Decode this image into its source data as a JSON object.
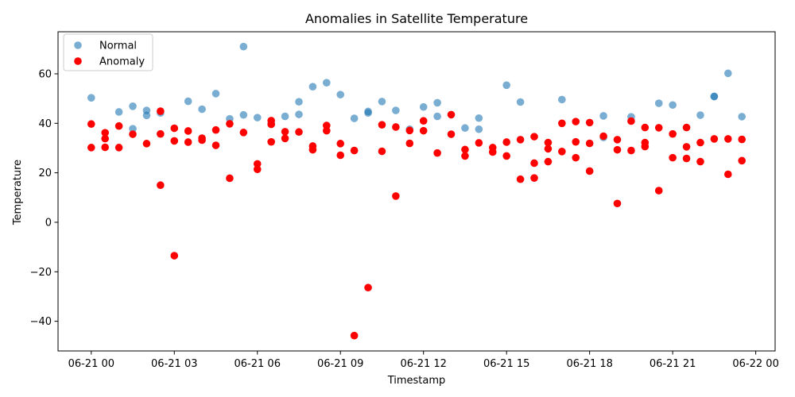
{
  "chart_data": {
    "type": "scatter",
    "title": "Anomalies in Satellite Temperature",
    "xlabel": "Timestamp",
    "ylabel": "Temperature",
    "x_unit": "hours from 06-21 00:00",
    "xlim": [
      -1.2,
      24.7
    ],
    "ylim": [
      -52,
      77
    ],
    "x_ticks": [
      0,
      3,
      6,
      9,
      12,
      15,
      18,
      21,
      24
    ],
    "x_tick_labels": [
      "06-21 00",
      "06-21 03",
      "06-21 06",
      "06-21 09",
      "06-21 12",
      "06-21 15",
      "06-21 18",
      "06-21 21",
      "06-22 00"
    ],
    "y_ticks": [
      -40,
      -20,
      0,
      20,
      40,
      60
    ],
    "y_tick_labels": [
      "−40",
      "−20",
      "0",
      "20",
      "40",
      "60"
    ],
    "grid": false,
    "legend_position": "top-left",
    "series": [
      {
        "name": "Normal",
        "color": "#1f77b4",
        "alpha": 0.6,
        "points": [
          [
            0,
            50.3
          ],
          [
            1,
            44.6
          ],
          [
            1.5,
            46.9
          ],
          [
            1.5,
            37.8
          ],
          [
            2,
            45.2
          ],
          [
            2,
            43.2
          ],
          [
            2.5,
            44.2
          ],
          [
            3.5,
            48.9
          ],
          [
            4,
            45.7
          ],
          [
            4.5,
            52.0
          ],
          [
            5,
            41.8
          ],
          [
            5.5,
            71.0
          ],
          [
            5.5,
            43.4
          ],
          [
            6,
            42.3
          ],
          [
            6.5,
            40.0
          ],
          [
            7,
            42.8
          ],
          [
            7.5,
            48.7
          ],
          [
            7.5,
            43.6
          ],
          [
            8,
            54.8
          ],
          [
            8.5,
            56.4
          ],
          [
            9,
            51.6
          ],
          [
            9.5,
            42.0
          ],
          [
            10,
            44.2
          ],
          [
            10,
            44.8
          ],
          [
            10.5,
            48.8
          ],
          [
            11,
            45.2
          ],
          [
            11.5,
            37.6
          ],
          [
            12,
            46.6
          ],
          [
            12.5,
            48.3
          ],
          [
            12.5,
            42.8
          ],
          [
            13.5,
            38.1
          ],
          [
            14,
            37.6
          ],
          [
            14,
            42.1
          ],
          [
            15,
            55.4
          ],
          [
            15.5,
            48.6
          ],
          [
            17,
            49.6
          ],
          [
            18.5,
            43.0
          ],
          [
            18.5,
            34.3
          ],
          [
            19.5,
            42.6
          ],
          [
            20.5,
            48.1
          ],
          [
            21,
            47.4
          ],
          [
            22,
            43.3
          ],
          [
            22.5,
            50.8
          ],
          [
            22.5,
            50.9
          ],
          [
            23,
            60.2
          ],
          [
            23.5,
            42.7
          ]
        ]
      },
      {
        "name": "Anomaly",
        "color": "#ff0000",
        "alpha": 1,
        "points": [
          [
            0,
            39.7
          ],
          [
            0,
            30.2
          ],
          [
            0.5,
            36.2
          ],
          [
            0.5,
            33.8
          ],
          [
            0.5,
            30.3
          ],
          [
            1,
            38.9
          ],
          [
            1,
            30.2
          ],
          [
            1.5,
            35.6
          ],
          [
            2,
            31.8
          ],
          [
            2.5,
            44.9
          ],
          [
            2.5,
            35.7
          ],
          [
            2.5,
            15.0
          ],
          [
            3,
            38.0
          ],
          [
            3,
            32.9
          ],
          [
            3,
            -13.5
          ],
          [
            3.5,
            36.9
          ],
          [
            3.5,
            32.4
          ],
          [
            4,
            34.0
          ],
          [
            4,
            33.2
          ],
          [
            4.5,
            37.3
          ],
          [
            4.5,
            31.1
          ],
          [
            5,
            39.8
          ],
          [
            5,
            17.8
          ],
          [
            5.5,
            36.3
          ],
          [
            6,
            23.6
          ],
          [
            6,
            21.4
          ],
          [
            6.5,
            41.1
          ],
          [
            6.5,
            39.6
          ],
          [
            6.5,
            32.5
          ],
          [
            7,
            36.6
          ],
          [
            7,
            33.9
          ],
          [
            7.5,
            36.5
          ],
          [
            8,
            30.8
          ],
          [
            8,
            29.3
          ],
          [
            8.5,
            39.1
          ],
          [
            8.5,
            37.0
          ],
          [
            9,
            31.8
          ],
          [
            9,
            27.1
          ],
          [
            9.5,
            29.0
          ],
          [
            9.5,
            -45.8
          ],
          [
            10,
            -26.4
          ],
          [
            10.5,
            39.4
          ],
          [
            10.5,
            28.7
          ],
          [
            11,
            38.5
          ],
          [
            11,
            10.6
          ],
          [
            11.5,
            37.1
          ],
          [
            11.5,
            31.9
          ],
          [
            12,
            41.0
          ],
          [
            12,
            37.0
          ],
          [
            12.5,
            28.0
          ],
          [
            13,
            43.5
          ],
          [
            13,
            35.6
          ],
          [
            13.5,
            29.4
          ],
          [
            13.5,
            26.8
          ],
          [
            14,
            32.1
          ],
          [
            14.5,
            30.2
          ],
          [
            14.5,
            28.4
          ],
          [
            15,
            32.4
          ],
          [
            15,
            26.8
          ],
          [
            15.5,
            33.4
          ],
          [
            15.5,
            17.4
          ],
          [
            16,
            34.6
          ],
          [
            16,
            23.9
          ],
          [
            16,
            17.9
          ],
          [
            16.5,
            32.2
          ],
          [
            16.5,
            29.7
          ],
          [
            16.5,
            24.5
          ],
          [
            17,
            40.0
          ],
          [
            17,
            28.6
          ],
          [
            17.5,
            40.7
          ],
          [
            17.5,
            32.5
          ],
          [
            17.5,
            26.1
          ],
          [
            18,
            40.3
          ],
          [
            18,
            31.9
          ],
          [
            18,
            20.7
          ],
          [
            18.5,
            34.8
          ],
          [
            19,
            33.4
          ],
          [
            19,
            29.3
          ],
          [
            19,
            7.6
          ],
          [
            19.5,
            40.9
          ],
          [
            19.5,
            29.0
          ],
          [
            20,
            38.3
          ],
          [
            20,
            32.2
          ],
          [
            20,
            30.6
          ],
          [
            20.5,
            38.2
          ],
          [
            20.5,
            12.8
          ],
          [
            21,
            35.7
          ],
          [
            21,
            26.1
          ],
          [
            21.5,
            38.3
          ],
          [
            21.5,
            30.5
          ],
          [
            21.5,
            25.8
          ],
          [
            22,
            32.2
          ],
          [
            22,
            24.5
          ],
          [
            22.5,
            33.7
          ],
          [
            23,
            33.7
          ],
          [
            23,
            19.4
          ],
          [
            23.5,
            33.5
          ],
          [
            23.5,
            24.9
          ]
        ]
      }
    ]
  }
}
